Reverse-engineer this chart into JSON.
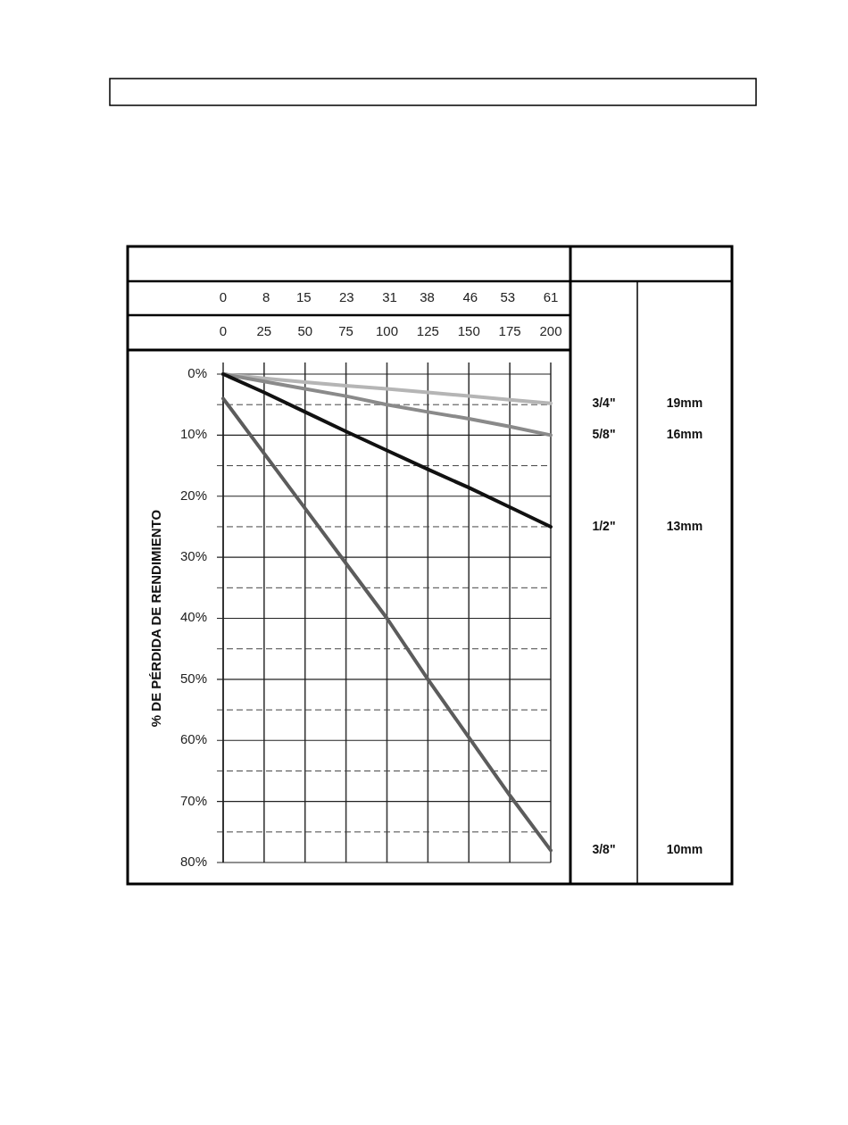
{
  "chart_data": {
    "type": "line",
    "ylabel": "% DE PÉRDIDA DE RENDIMIENTO",
    "x": [
      0,
      25,
      50,
      75,
      100,
      125,
      150,
      175,
      200
    ],
    "xlim": [
      0,
      200
    ],
    "xticks": [
      0,
      25,
      50,
      75,
      100,
      125,
      150,
      175,
      200
    ],
    "x2lim": [
      0,
      61
    ],
    "x2ticks": [
      0,
      8,
      15,
      23,
      31,
      38,
      46,
      53,
      61
    ],
    "ylim": [
      80,
      0
    ],
    "yticks": [
      {
        "value": 0,
        "label": "0%"
      },
      {
        "value": 5,
        "label": null
      },
      {
        "value": 10,
        "label": "10%"
      },
      {
        "value": 15,
        "label": null
      },
      {
        "value": 20,
        "label": "20%"
      },
      {
        "value": 25,
        "label": null
      },
      {
        "value": 30,
        "label": "30%"
      },
      {
        "value": 35,
        "label": null
      },
      {
        "value": 40,
        "label": "40%"
      },
      {
        "value": 45,
        "label": null
      },
      {
        "value": 50,
        "label": "50%"
      },
      {
        "value": 55,
        "label": null
      },
      {
        "value": 60,
        "label": "60%"
      },
      {
        "value": 65,
        "label": null
      },
      {
        "value": 70,
        "label": "70%"
      },
      {
        "value": 75,
        "label": null
      },
      {
        "value": 80,
        "label": "80%"
      }
    ],
    "grid": true,
    "series": [
      {
        "name": "3/4\"",
        "color": "#b5b5b5",
        "values": [
          0,
          0.7,
          1.3,
          1.9,
          2.4,
          3,
          3.6,
          4.2,
          4.8
        ]
      },
      {
        "name": "5/8\"",
        "color": "#8a8a8a",
        "values": [
          0,
          1.2,
          2.4,
          3.6,
          5,
          6.2,
          7.3,
          8.6,
          10
        ]
      },
      {
        "name": "1/2\"",
        "color": "#111111",
        "values": [
          0,
          3,
          6.2,
          9.4,
          12.5,
          15.6,
          18.6,
          21.8,
          25
        ]
      },
      {
        "name": "3/8\"",
        "color": "#5c5c5c",
        "values": [
          4,
          13,
          22,
          31,
          40,
          50,
          59.5,
          69,
          78
        ]
      }
    ],
    "annotations": [
      "19mm",
      "16mm",
      "13mm",
      "10mm"
    ]
  }
}
